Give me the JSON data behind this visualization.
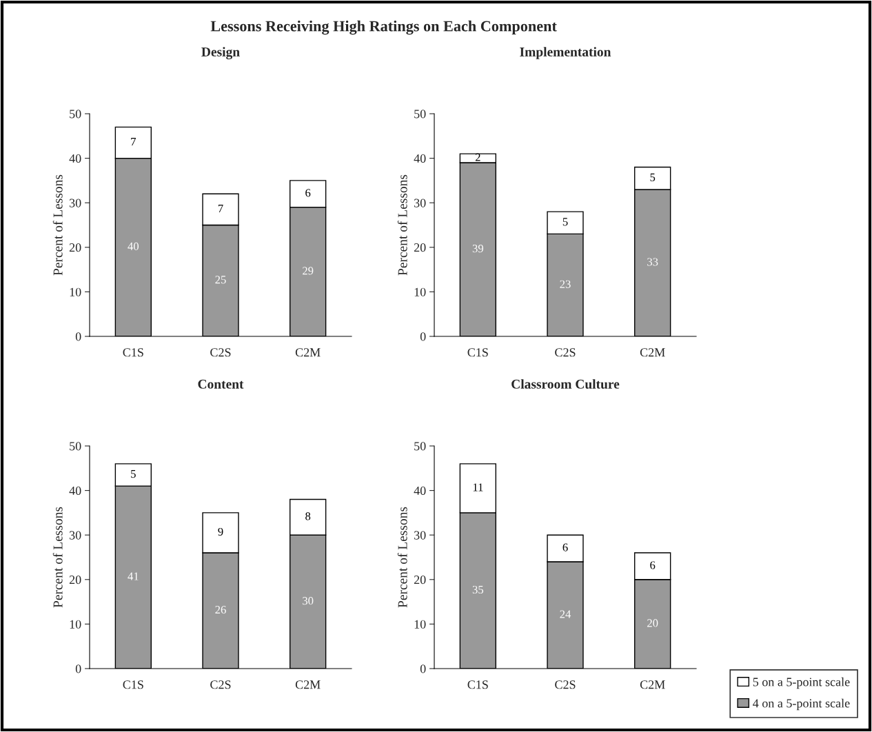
{
  "chart_data": [
    {
      "type": "bar",
      "title": "Design",
      "annotations": [
        "Lessons Receiving High Ratings on Each Component"
      ],
      "ylabel": "Percent of Lessons",
      "categories": [
        "C1S",
        "C2S",
        "C2M"
      ],
      "stacked": true,
      "data_labels": true,
      "ylim": [
        0,
        50
      ],
      "yticks": [
        0,
        10,
        20,
        30,
        40,
        50
      ],
      "grid": false,
      "legend": false,
      "series": [
        {
          "color": "#999999",
          "values": [
            40,
            25,
            29
          ]
        },
        {
          "color": "#ffffff",
          "values": [
            7,
            7,
            6
          ]
        }
      ]
    },
    {
      "type": "bar",
      "title": "Implementation",
      "ylabel": "Percent of Lessons",
      "categories": [
        "C1S",
        "C2S",
        "C2M"
      ],
      "stacked": true,
      "data_labels": true,
      "ylim": [
        0,
        50
      ],
      "yticks": [
        0,
        10,
        20,
        30,
        40,
        50
      ],
      "grid": false,
      "legend": false,
      "series": [
        {
          "color": "#999999",
          "values": [
            39,
            23,
            33
          ]
        },
        {
          "color": "#ffffff",
          "values": [
            2,
            5,
            5
          ]
        }
      ]
    },
    {
      "type": "bar",
      "title": "Content",
      "ylabel": "Percent of Lessons",
      "categories": [
        "C1S",
        "C2S",
        "C2M"
      ],
      "stacked": true,
      "data_labels": true,
      "ylim": [
        0,
        50
      ],
      "yticks": [
        0,
        10,
        20,
        30,
        40,
        50
      ],
      "grid": false,
      "legend": false,
      "series": [
        {
          "color": "#999999",
          "values": [
            41,
            26,
            30
          ]
        },
        {
          "color": "#ffffff",
          "values": [
            5,
            9,
            8
          ]
        }
      ]
    },
    {
      "type": "bar",
      "title": "Classroom Culture",
      "ylabel": "Percent of Lessons",
      "categories": [
        "C1S",
        "C2S",
        "C2M"
      ],
      "stacked": true,
      "data_labels": true,
      "ylim": [
        0,
        50
      ],
      "yticks": [
        0,
        10,
        20,
        30,
        40,
        50
      ],
      "grid": false,
      "legend": "bottom right",
      "series": [
        {
          "name": "4 on a 5-point scale",
          "color": "#999999",
          "values": [
            35,
            24,
            20
          ]
        },
        {
          "name": "5 on a 5-point scale",
          "color": "#ffffff",
          "values": [
            11,
            6,
            6
          ]
        }
      ]
    }
  ]
}
